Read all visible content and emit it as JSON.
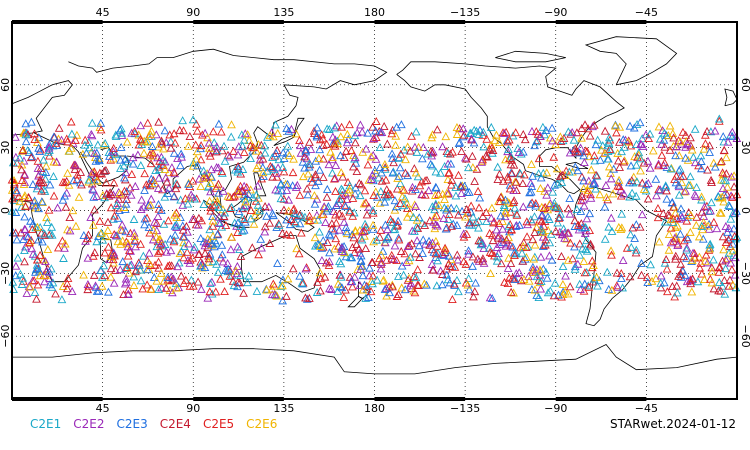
{
  "map": {
    "footer_label": "STARwet.2024-01-12",
    "longitude_ticks": [
      {
        "lon": 45,
        "label": "45"
      },
      {
        "lon": 90,
        "label": "90"
      },
      {
        "lon": 135,
        "label": "135"
      },
      {
        "lon": 180,
        "label": "180"
      },
      {
        "lon": 225,
        "label": "−135"
      },
      {
        "lon": 270,
        "label": "−90"
      },
      {
        "lon": 315,
        "label": "−45"
      }
    ],
    "latitude_ticks": [
      {
        "lat": 60,
        "label": "60"
      },
      {
        "lat": 30,
        "label": "30"
      },
      {
        "lat": 0,
        "label": "0"
      },
      {
        "lat": -30,
        "label": "−30"
      },
      {
        "lat": -60,
        "label": "−60"
      }
    ],
    "lon_range": [
      0,
      360
    ],
    "lat_range": [
      -90,
      90
    ],
    "legend": [
      {
        "label": "C2E1",
        "color": "#1aa8c8"
      },
      {
        "label": "C2E2",
        "color": "#9a28b8"
      },
      {
        "label": "C2E3",
        "color": "#1f6fe0"
      },
      {
        "label": "C2E4",
        "color": "#c4182e"
      },
      {
        "label": "C2E5",
        "color": "#e02020"
      },
      {
        "label": "C2E6",
        "color": "#f0b400"
      }
    ],
    "observation_lat_band": [
      -40,
      40
    ],
    "marker": "open-triangle"
  }
}
